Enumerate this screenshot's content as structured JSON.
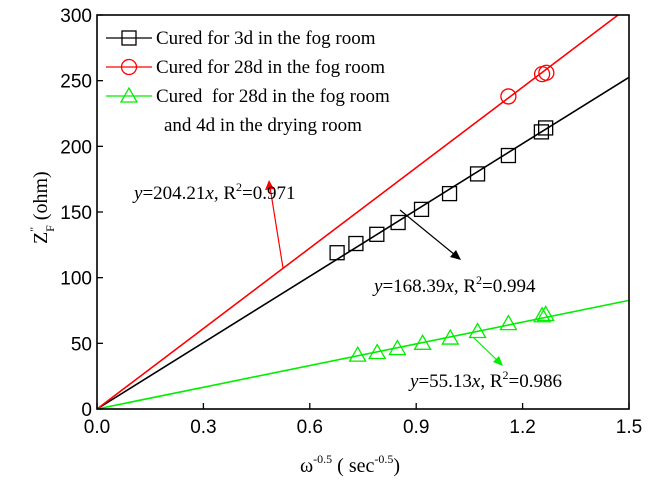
{
  "chart_data": {
    "type": "scatter",
    "xlim": [
      0.0,
      1.5
    ],
    "ylim": [
      0,
      300
    ],
    "xticks": [
      "0.0",
      "0.3",
      "0.6",
      "0.9",
      "1.2",
      "1.5"
    ],
    "yticks": [
      "0",
      "50",
      "100",
      "150",
      "200",
      "250",
      "300"
    ],
    "xtick_values": [
      0.0,
      0.3,
      0.6,
      0.9,
      1.2,
      1.5
    ],
    "ytick_values": [
      0,
      50,
      100,
      150,
      200,
      250,
      300
    ],
    "xlabel": {
      "base": "ω",
      "sup": "-0.5",
      "mid": " ( sec",
      "sup2": "-0.5",
      "end": ")"
    },
    "ylabel": {
      "base": "Z",
      "sup": "\"",
      "sub": "F",
      "rest": " (ohm)"
    },
    "series": [
      {
        "name": "Cured for 3d in the fog room",
        "color": "#000000",
        "marker": "square",
        "slope": 168.39,
        "x": [
          0.677,
          0.73,
          0.789,
          0.849,
          0.915,
          0.994,
          1.073,
          1.16,
          1.253,
          1.265
        ],
        "y": [
          119,
          126,
          133,
          142,
          152,
          164,
          179,
          193,
          211,
          214
        ]
      },
      {
        "name": "Cured for 28d in the fog room",
        "color": "#ff0000",
        "marker": "circle",
        "slope": 204.21,
        "x": [
          1.16,
          1.255,
          1.267
        ],
        "y": [
          238,
          255,
          256
        ]
      },
      {
        "name": "Cured  for 28d in the fog room",
        "name_line2": "and 4d in the drying room",
        "color": "#00ee00",
        "marker": "triangle",
        "slope": 55.13,
        "x": [
          0.735,
          0.79,
          0.847,
          0.918,
          0.996,
          1.073,
          1.16,
          1.255,
          1.265
        ],
        "y": [
          41,
          43,
          46,
          50,
          54,
          59,
          65,
          71,
          72
        ]
      }
    ],
    "annotations": [
      {
        "var": "y",
        "eq": "=204.21",
        "x": "x",
        "r": ", R",
        "r2sup": "2",
        "val": "=0.971",
        "color": "#ff0000"
      },
      {
        "var": "y",
        "eq": "=168.39",
        "x": "x",
        "r": ", R",
        "r2sup": "2",
        "val": "=0.994",
        "color": "#000000"
      },
      {
        "var": "y",
        "eq": "=55.13",
        "x": "x",
        "r": ", R",
        "r2sup": "2",
        "val": "=0.986",
        "color": "#00ee00"
      }
    ],
    "legend_position": "top-left",
    "grid": false
  }
}
